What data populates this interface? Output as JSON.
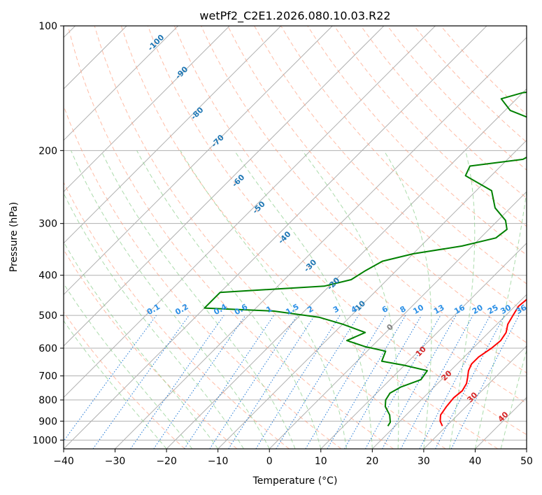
{
  "chart_data": {
    "type": "line",
    "subtype": "skew-t log-p",
    "title": "wetPf2_C2E1.2026.080.10.03.R22",
    "xlabel": "Temperature (°C)",
    "ylabel": "Pressure (hPa)",
    "xlim": [
      -40,
      50
    ],
    "ylim": [
      1050,
      100
    ],
    "xticks": [
      -40,
      -30,
      -20,
      -10,
      0,
      10,
      20,
      30,
      40,
      50
    ],
    "xtick_labels": [
      "−40",
      "−30",
      "−20",
      "−10",
      "0",
      "10",
      "20",
      "30",
      "40",
      "50"
    ],
    "yticks": [
      1000,
      900,
      800,
      700,
      600,
      500,
      400,
      300,
      200,
      100
    ],
    "ytick_labels": [
      "1000",
      "900",
      "800",
      "700",
      "600",
      "500",
      "400",
      "300",
      "200",
      "100"
    ],
    "grid": true,
    "dry_adiabat_labels": [
      {
        "text": "-100",
        "x": -22,
        "p": 110
      },
      {
        "text": "-90",
        "x": -17,
        "p": 130
      },
      {
        "text": "-80",
        "x": -14,
        "p": 163
      },
      {
        "text": "-70",
        "x": -10,
        "p": 190
      },
      {
        "text": "-60",
        "x": -6,
        "p": 237
      },
      {
        "text": "-50",
        "x": -2,
        "p": 275
      },
      {
        "text": "-40",
        "x": 3,
        "p": 325
      },
      {
        "text": "-30",
        "x": 8,
        "p": 380
      },
      {
        "text": "-20",
        "x": 12.5,
        "p": 420
      },
      {
        "text": "-10",
        "x": 17.5,
        "p": 478
      },
      {
        "text": "0",
        "x": 23.5,
        "p": 535
      },
      {
        "text": "10",
        "x": 29.5,
        "p": 612
      },
      {
        "text": "20",
        "x": 34.5,
        "p": 700
      },
      {
        "text": "30",
        "x": 39.5,
        "p": 790
      },
      {
        "text": "40",
        "x": 45.5,
        "p": 880
      }
    ],
    "mixing_ratio_labels": [
      {
        "text": "0.1",
        "x": -22.5,
        "p": 500
      },
      {
        "text": "0.2",
        "x": -17,
        "p": 500
      },
      {
        "text": "0.4",
        "x": -9.5,
        "p": 500
      },
      {
        "text": "0.6",
        "x": -5.5,
        "p": 500
      },
      {
        "text": "1",
        "x": 0,
        "p": 500
      },
      {
        "text": "1.5",
        "x": 4.5,
        "p": 500
      },
      {
        "text": "2",
        "x": 8,
        "p": 500
      },
      {
        "text": "3",
        "x": 13,
        "p": 500
      },
      {
        "text": "4",
        "x": 16.5,
        "p": 500
      },
      {
        "text": "6",
        "x": 22.5,
        "p": 500
      },
      {
        "text": "8",
        "x": 26,
        "p": 500
      },
      {
        "text": "10",
        "x": 29,
        "p": 500
      },
      {
        "text": "13",
        "x": 33,
        "p": 500
      },
      {
        "text": "16",
        "x": 37,
        "p": 500
      },
      {
        "text": "20",
        "x": 40.5,
        "p": 500
      },
      {
        "text": "25",
        "x": 43.5,
        "p": 500
      },
      {
        "text": "30",
        "x": 46,
        "p": 500
      },
      {
        "text": "36",
        "x": 49,
        "p": 500
      }
    ],
    "series": [
      {
        "name": "Temperature",
        "color": "#ff0000",
        "points": [
          [
            29.2,
            925
          ],
          [
            27.8,
            900
          ],
          [
            26.7,
            870
          ],
          [
            26.2,
            830
          ],
          [
            25.9,
            790
          ],
          [
            26.2,
            760
          ],
          [
            25.6,
            730
          ],
          [
            24.6,
            705
          ],
          [
            23.5,
            680
          ],
          [
            22.8,
            655
          ],
          [
            22.8,
            630
          ],
          [
            23.6,
            600
          ],
          [
            23.9,
            575
          ],
          [
            23.4,
            550
          ],
          [
            22.1,
            525
          ],
          [
            21.4,
            500
          ],
          [
            20.7,
            475
          ],
          [
            21.0,
            455
          ],
          [
            20.4,
            430
          ],
          [
            18.8,
            400
          ],
          [
            17.4,
            375
          ],
          [
            15.6,
            350
          ],
          [
            13.2,
            325
          ],
          [
            11.2,
            300
          ],
          [
            9.6,
            280
          ],
          [
            8.3,
            260
          ],
          [
            7.1,
            240
          ],
          [
            5.6,
            220
          ],
          [
            4.0,
            205
          ],
          [
            2.4,
            195
          ],
          [
            1.7,
            185
          ],
          [
            1.4,
            175
          ],
          [
            1.0,
            165
          ],
          [
            -0.4,
            155
          ],
          [
            -1.7,
            145
          ],
          [
            -2.7,
            135
          ],
          [
            -3.1,
            127
          ],
          [
            -2.8,
            120
          ],
          [
            -1.8,
            112
          ],
          [
            -0.9,
            105
          ],
          [
            0.0,
            100
          ]
        ]
      },
      {
        "name": "Dewpoint",
        "color": "#008000",
        "points": [
          [
            18.6,
            925
          ],
          [
            18.3,
            905
          ],
          [
            16.8,
            870
          ],
          [
            14.3,
            830
          ],
          [
            13.1,
            800
          ],
          [
            12.6,
            770
          ],
          [
            13.5,
            745
          ],
          [
            16.0,
            715
          ],
          [
            15.5,
            680
          ],
          [
            10.0,
            660
          ],
          [
            4.8,
            645
          ],
          [
            3.6,
            610
          ],
          [
            -1.2,
            595
          ],
          [
            -6.0,
            575
          ],
          [
            -4.0,
            550
          ],
          [
            -10.0,
            525
          ],
          [
            -16.0,
            505
          ],
          [
            -26.0,
            488
          ],
          [
            -40.0,
            480
          ],
          [
            -40.0,
            440
          ],
          [
            -21.0,
            425
          ],
          [
            -17.0,
            410
          ],
          [
            -16.0,
            390
          ],
          [
            -14.5,
            370
          ],
          [
            -10.0,
            355
          ],
          [
            -2.0,
            340
          ],
          [
            3.0,
            325
          ],
          [
            3.5,
            310
          ],
          [
            1.5,
            295
          ],
          [
            -3.0,
            275
          ],
          [
            -7.0,
            250
          ],
          [
            -15.0,
            230
          ],
          [
            -16.0,
            218
          ],
          [
            -7.0,
            210
          ],
          [
            -5.0,
            195
          ],
          [
            -8.0,
            175
          ],
          [
            -19.0,
            160
          ],
          [
            -23.0,
            150
          ],
          [
            -20.0,
            145
          ],
          [
            -7.5,
            138
          ],
          [
            -3.2,
            130
          ],
          [
            -3.3,
            120
          ],
          [
            -2.5,
            112
          ],
          [
            -1.0,
            105
          ],
          [
            0.0,
            100
          ]
        ]
      }
    ],
    "colors": {
      "grid": "#b0b0b0",
      "dry_adiabats": "#ff9f80",
      "moist_adiabats": "#88cc88",
      "mixing_ratio": "#1f77d4",
      "dry_label": "#1f77b4",
      "zero_label": "#808080",
      "warm_label": "#d62728",
      "mixing_label": "#2a8fe6"
    }
  }
}
